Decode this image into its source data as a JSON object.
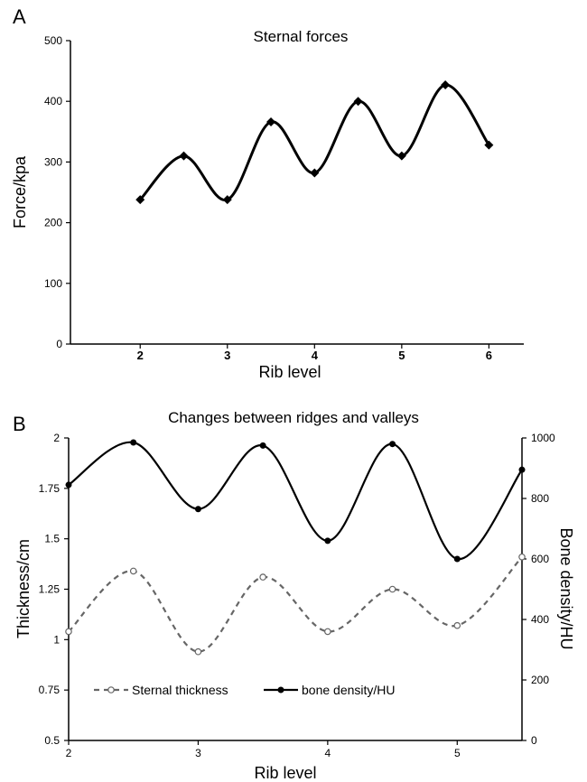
{
  "chart_data": [
    {
      "panel_label": "A",
      "type": "line",
      "title": "Sternal forces",
      "xlabel": "Rib level",
      "ylabel": "Force/kpa",
      "ylim": [
        0,
        500
      ],
      "yticks": [
        0,
        100,
        200,
        300,
        400,
        500
      ],
      "xlim": [
        1.2,
        6.4
      ],
      "xticks": [
        2,
        3,
        4,
        5,
        6
      ],
      "grid": false,
      "series": [
        {
          "x": [
            2,
            2.5,
            3,
            3.5,
            4,
            4.5,
            5,
            5.5,
            6
          ],
          "values": [
            238,
            310,
            238,
            366,
            282,
            400,
            310,
            427,
            328
          ],
          "color": "#000000",
          "marker": "diamond",
          "line_style": "solid"
        }
      ]
    },
    {
      "panel_label": "B",
      "type": "line",
      "title": "Changes between ridges and valleys",
      "xlabel": "Rib level",
      "ylabel": "Thickness/cm",
      "y2label": "Bone density/HU",
      "xlim": [
        2,
        5.5
      ],
      "xticks": [
        2,
        3,
        4,
        5
      ],
      "ylim": [
        0.5,
        2
      ],
      "yticks": [
        0.5,
        0.75,
        1,
        1.25,
        1.5,
        1.75,
        2
      ],
      "y2lim": [
        0,
        1000
      ],
      "y2ticks": [
        0,
        200,
        400,
        600,
        800,
        1000
      ],
      "grid": false,
      "legend_position": "bottom-left",
      "series": [
        {
          "name": "Sternal thickness",
          "axis": "left",
          "x": [
            2,
            2.5,
            3,
            3.5,
            4,
            4.5,
            5,
            5.5
          ],
          "values": [
            1.04,
            1.34,
            0.94,
            1.31,
            1.04,
            1.25,
            1.07,
            1.41
          ],
          "color": "#666666",
          "marker": "open-circle",
          "line_style": "dashed"
        },
        {
          "name": "bone density/HU",
          "axis": "right",
          "x": [
            2,
            2.5,
            3,
            3.5,
            4,
            4.5,
            5,
            5.5
          ],
          "values": [
            845,
            985,
            765,
            975,
            660,
            980,
            600,
            895
          ],
          "color": "#000000",
          "marker": "filled-circle",
          "line_style": "solid"
        }
      ]
    }
  ]
}
